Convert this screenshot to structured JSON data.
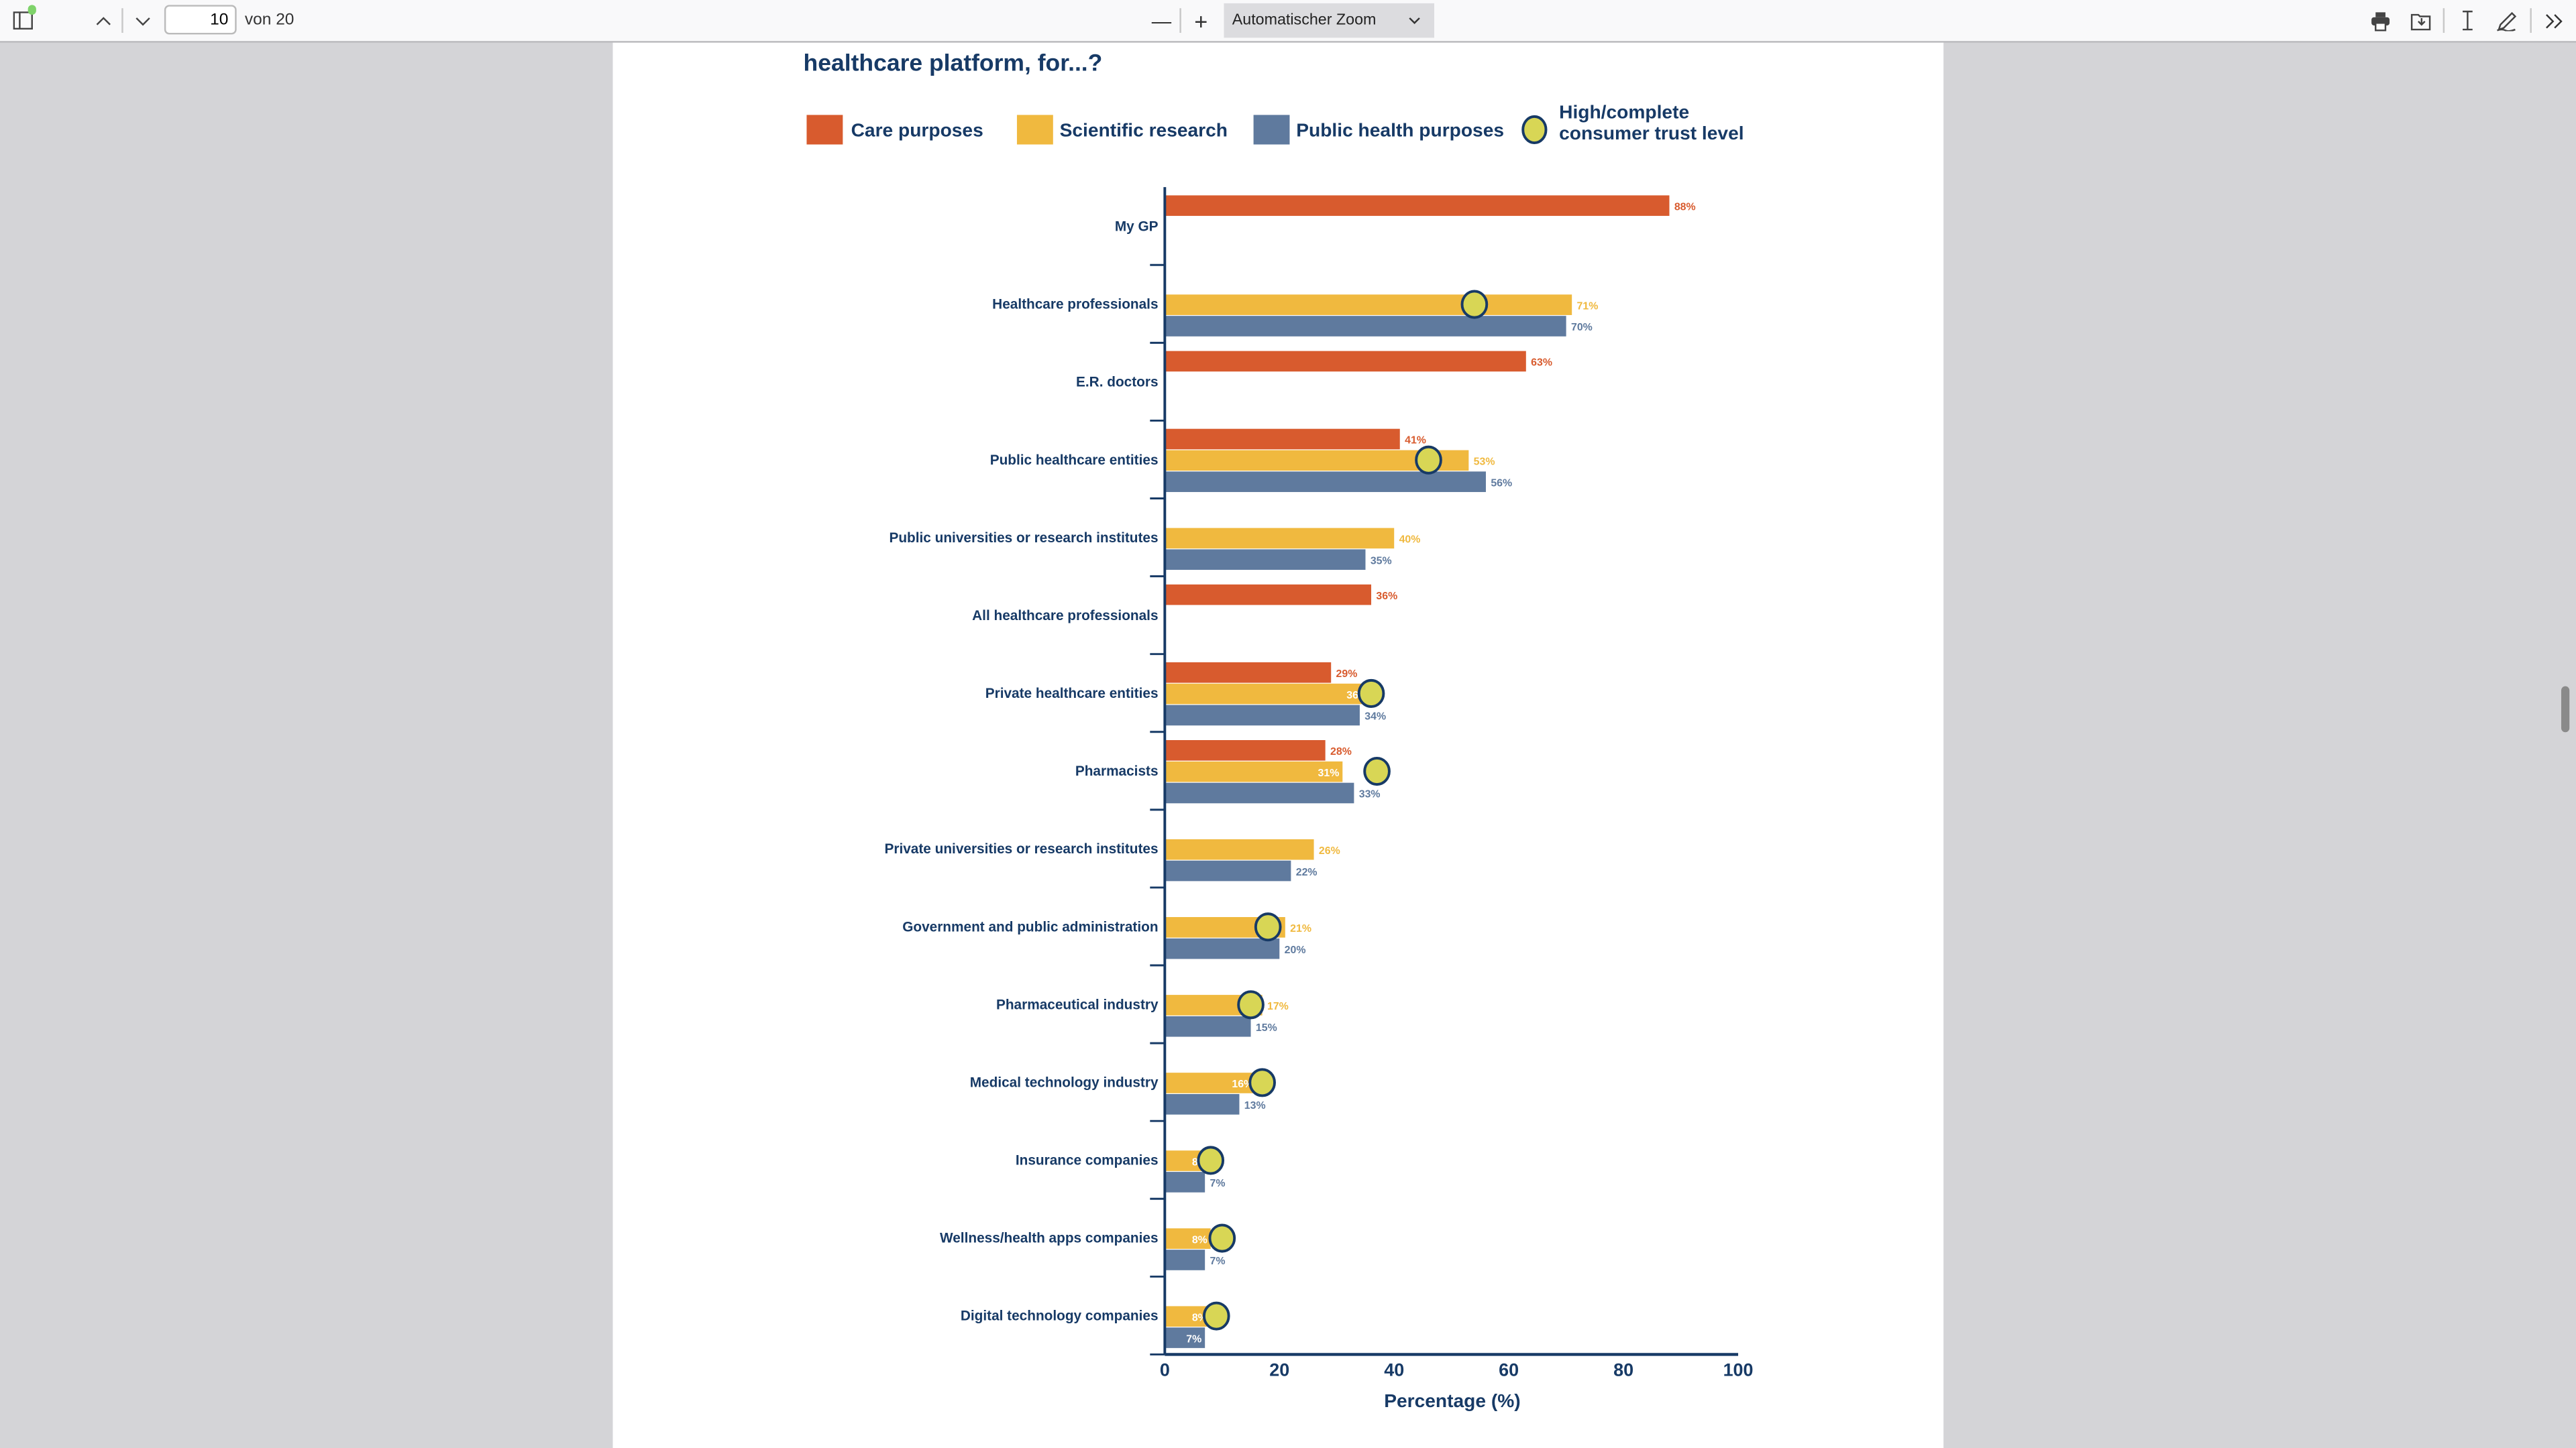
{
  "toolbar": {
    "page_current": "10",
    "page_total_label": "von 20",
    "zoom_label": "Automatischer Zoom",
    "zoom_out": "—",
    "zoom_in": "+"
  },
  "colors": {
    "care": "#d85b2e",
    "science": "#f0b93f",
    "public": "#5f7a9e",
    "trust": "#d8d655",
    "navy": "#173a66"
  },
  "chart_data": {
    "type": "bar",
    "orientation": "horizontal",
    "title": "healthcare platform, for...?",
    "xlabel": "Percentage (%)",
    "xlim": [
      0,
      100
    ],
    "xticks": [
      0,
      20,
      40,
      60,
      80,
      100
    ],
    "legend": {
      "placement": "top",
      "entries": [
        "Care purposes",
        "Scientific research",
        "Public health purposes",
        "High/complete consumer trust level"
      ]
    },
    "categories": [
      "My GP",
      "Healthcare professionals",
      "E.R. doctors",
      "Public healthcare entities",
      "Public universities or research institutes",
      "All healthcare professionals",
      "Private healthcare entities",
      "Pharmacists",
      "Private universities or research institutes",
      "Government and public administration",
      "Pharmaceutical industry",
      "Medical technology industry",
      "Insurance companies",
      "Wellness/health apps companies",
      "Digital technology companies"
    ],
    "series": [
      {
        "name": "Care purposes",
        "key": "care",
        "values": [
          88,
          null,
          63,
          41,
          null,
          36,
          29,
          28,
          null,
          null,
          null,
          null,
          null,
          null,
          null
        ]
      },
      {
        "name": "Scientific research",
        "key": "science",
        "values": [
          null,
          71,
          null,
          53,
          40,
          null,
          36,
          31,
          26,
          21,
          17,
          16,
          8,
          8,
          8
        ]
      },
      {
        "name": "Public health purposes",
        "key": "public",
        "values": [
          null,
          70,
          null,
          56,
          35,
          null,
          34,
          33,
          22,
          20,
          15,
          13,
          7,
          7,
          7
        ]
      },
      {
        "name": "High/complete consumer trust level",
        "key": "trust",
        "values": [
          null,
          54,
          null,
          46,
          null,
          null,
          36,
          37,
          null,
          18,
          15,
          17,
          8,
          10,
          9
        ]
      }
    ]
  }
}
